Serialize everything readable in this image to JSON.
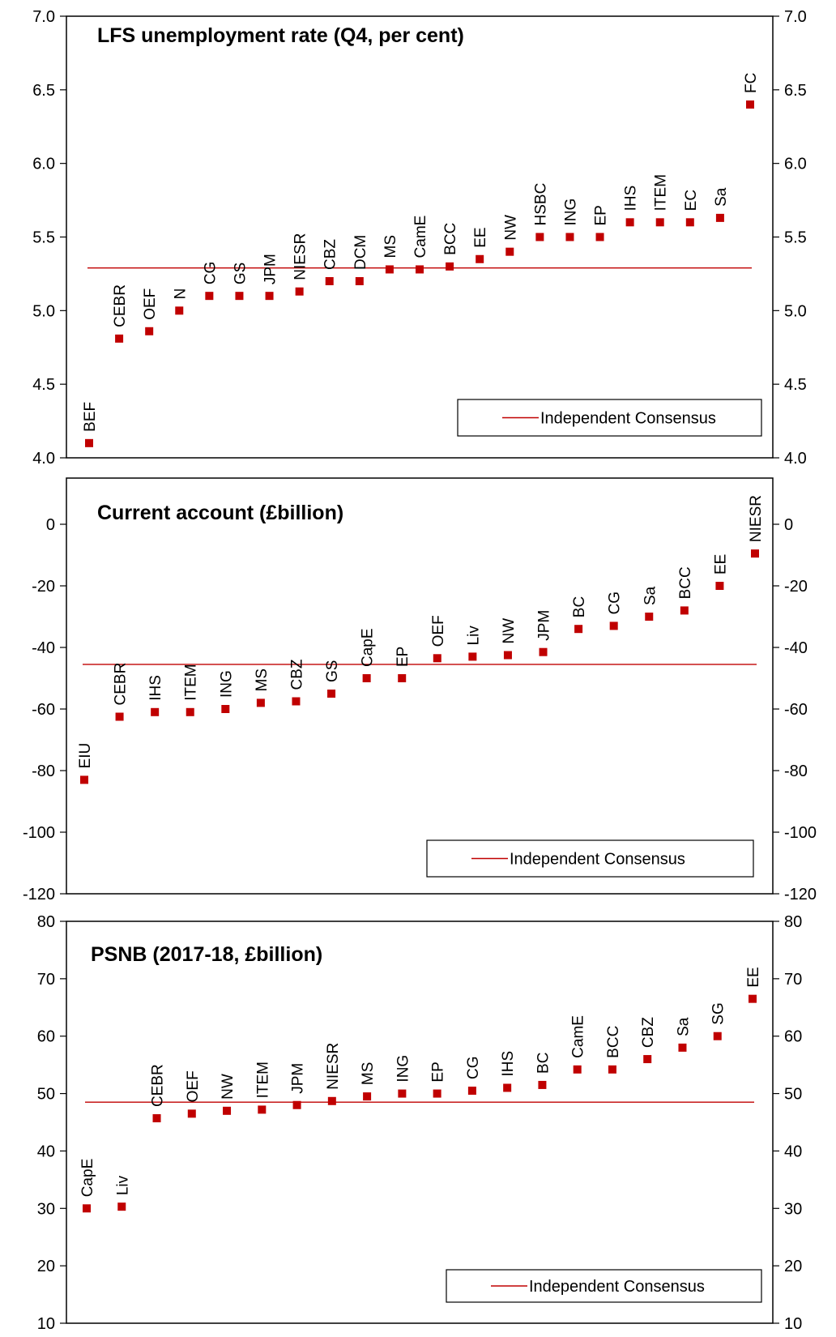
{
  "chart_data": [
    {
      "type": "scatter",
      "title": "LFS unemployment rate (Q4, per cent)",
      "ylim": [
        4.0,
        7.0
      ],
      "yticks": [
        "4.0",
        "4.5",
        "5.0",
        "5.5",
        "6.0",
        "6.5",
        "7.0"
      ],
      "grid": false,
      "legend": "bottom-right",
      "reference_line": {
        "name": "Independent Consensus",
        "value": 5.29
      },
      "series": [
        {
          "points": [
            {
              "label": "BEF",
              "value": 4.1
            },
            {
              "label": "CEBR",
              "value": 4.81
            },
            {
              "label": "OEF",
              "value": 4.86
            },
            {
              "label": "N",
              "value": 5.0
            },
            {
              "label": "CG",
              "value": 5.1
            },
            {
              "label": "GS",
              "value": 5.1
            },
            {
              "label": "JPM",
              "value": 5.1
            },
            {
              "label": "NIESR",
              "value": 5.13
            },
            {
              "label": "CBZ",
              "value": 5.2
            },
            {
              "label": "DCM",
              "value": 5.2
            },
            {
              "label": "MS",
              "value": 5.28
            },
            {
              "label": "CamE",
              "value": 5.28
            },
            {
              "label": "BCC",
              "value": 5.3
            },
            {
              "label": "EE",
              "value": 5.35
            },
            {
              "label": "NW",
              "value": 5.4
            },
            {
              "label": "HSBC",
              "value": 5.5
            },
            {
              "label": "ING",
              "value": 5.5
            },
            {
              "label": "EP",
              "value": 5.5
            },
            {
              "label": "IHS",
              "value": 5.6
            },
            {
              "label": "ITEM",
              "value": 5.6
            },
            {
              "label": "EC",
              "value": 5.6
            },
            {
              "label": "Sa",
              "value": 5.63
            },
            {
              "label": "FC",
              "value": 6.4
            }
          ]
        }
      ]
    },
    {
      "type": "scatter",
      "title": "Current account (£billion)",
      "ylim": [
        -120,
        15
      ],
      "yticks": [
        "-120",
        "-100",
        "-80",
        "-60",
        "-40",
        "-20",
        "0"
      ],
      "grid": false,
      "legend": "bottom-right",
      "reference_line": {
        "name": "Independent Consensus",
        "value": -45.5
      },
      "series": [
        {
          "points": [
            {
              "label": "EIU",
              "value": -83
            },
            {
              "label": "CEBR",
              "value": -62.5
            },
            {
              "label": "IHS",
              "value": -61
            },
            {
              "label": "ITEM",
              "value": -61
            },
            {
              "label": "ING",
              "value": -60
            },
            {
              "label": "MS",
              "value": -58
            },
            {
              "label": "CBZ",
              "value": -57.5
            },
            {
              "label": "GS",
              "value": -55
            },
            {
              "label": "CapE",
              "value": -50
            },
            {
              "label": "EP",
              "value": -50
            },
            {
              "label": "OEF",
              "value": -43.5
            },
            {
              "label": "Liv",
              "value": -43
            },
            {
              "label": "NW",
              "value": -42.5
            },
            {
              "label": "JPM",
              "value": -41.5
            },
            {
              "label": "BC",
              "value": -34
            },
            {
              "label": "CG",
              "value": -33
            },
            {
              "label": "Sa",
              "value": -30
            },
            {
              "label": "BCC",
              "value": -28
            },
            {
              "label": "EE",
              "value": -20
            },
            {
              "label": "NIESR",
              "value": -9.5
            }
          ]
        }
      ]
    },
    {
      "type": "scatter",
      "title": "PSNB (2017-18, £billion)",
      "ylim": [
        10,
        80
      ],
      "yticks": [
        "10",
        "20",
        "30",
        "40",
        "50",
        "60",
        "70",
        "80"
      ],
      "grid": false,
      "legend": "bottom-right",
      "reference_line": {
        "name": "Independent Consensus",
        "value": 48.5
      },
      "series": [
        {
          "points": [
            {
              "label": "CapE",
              "value": 30
            },
            {
              "label": "Liv",
              "value": 30.3
            },
            {
              "label": "CEBR",
              "value": 45.7
            },
            {
              "label": "OEF",
              "value": 46.5
            },
            {
              "label": "NW",
              "value": 47
            },
            {
              "label": "ITEM",
              "value": 47.2
            },
            {
              "label": "JPM",
              "value": 48
            },
            {
              "label": "NIESR",
              "value": 48.7
            },
            {
              "label": "MS",
              "value": 49.5
            },
            {
              "label": "ING",
              "value": 50
            },
            {
              "label": "EP",
              "value": 50
            },
            {
              "label": "CG",
              "value": 50.5
            },
            {
              "label": "IHS",
              "value": 51
            },
            {
              "label": "BC",
              "value": 51.5
            },
            {
              "label": "CamE",
              "value": 54.2
            },
            {
              "label": "BCC",
              "value": 54.2
            },
            {
              "label": "CBZ",
              "value": 56
            },
            {
              "label": "Sa",
              "value": 58
            },
            {
              "label": "SG",
              "value": 60
            },
            {
              "label": "EE",
              "value": 66.5
            }
          ]
        }
      ]
    }
  ],
  "colors": {
    "marker": "#c00000",
    "reference_line": "#c00000",
    "axis": "#000000"
  }
}
